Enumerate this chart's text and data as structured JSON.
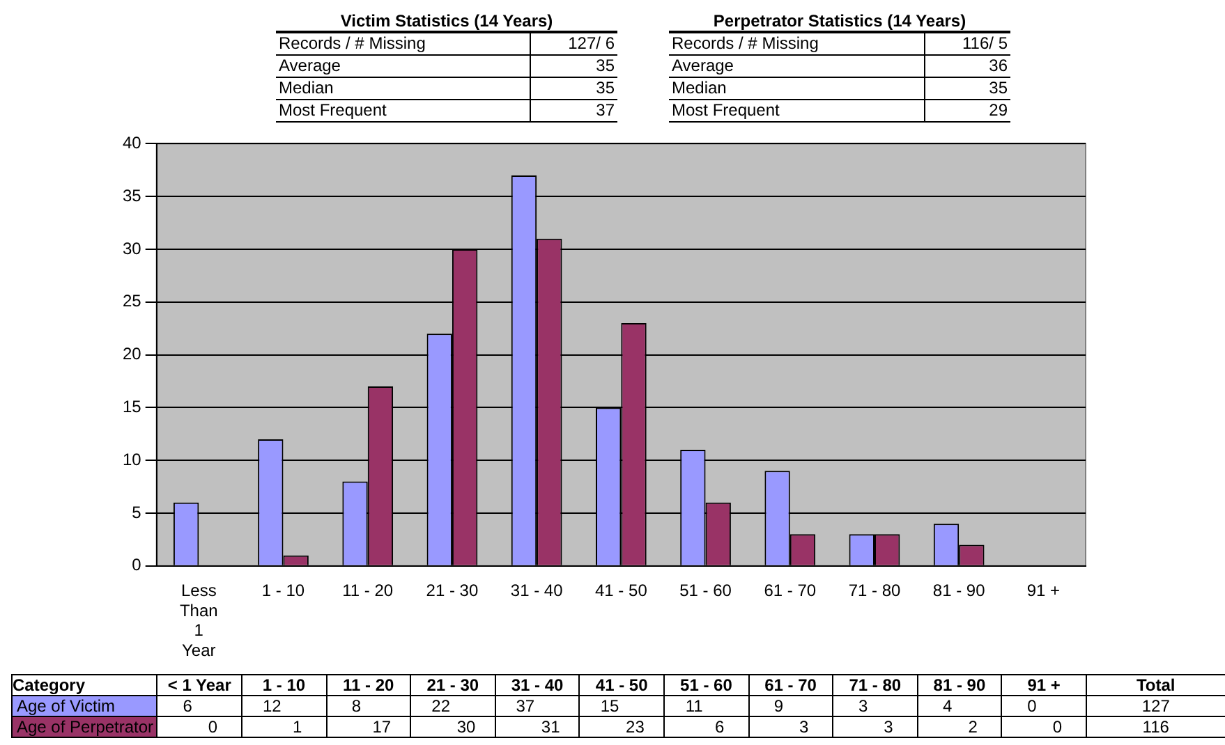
{
  "chart_data": {
    "type": "bar",
    "categories": [
      "Less Than 1 Year",
      "1 - 10",
      "11 - 20",
      "21 - 30",
      "31 - 40",
      "41 - 50",
      "51 - 60",
      "61 - 70",
      "71 - 80",
      "81 - 90",
      "91 +"
    ],
    "series": [
      {
        "name": "Age of Victim",
        "color": "#9999ff",
        "values": [
          6,
          12,
          8,
          22,
          37,
          15,
          11,
          9,
          3,
          4,
          0
        ],
        "value_labels": [
          "6",
          "12",
          "8",
          "22",
          "37",
          "15",
          "11",
          "9",
          "3",
          "4",
          "0"
        ]
      },
      {
        "name": "Age of Perpetrator",
        "color": "#993366",
        "values": [
          0,
          1,
          17,
          30,
          31,
          23,
          6,
          3,
          3,
          2,
          0
        ],
        "value_labels": [
          "0",
          "1",
          "17",
          "30",
          "31",
          "23",
          "6",
          "3",
          "3",
          "2",
          "0"
        ]
      }
    ],
    "ylim": [
      0,
      40
    ],
    "yticks": [
      0,
      5,
      10,
      15,
      20,
      25,
      30,
      35,
      40
    ],
    "grid": "y",
    "legend": "bottom",
    "annotations": [
      "Victim Statistics (14 Years)",
      "Records / # Missing",
      "127/ 6",
      "Average",
      "35",
      "Median",
      "35",
      "Most Frequent",
      "37",
      "Perpetrator Statistics (14 Years)",
      "Records / # Missing",
      "116/ 5",
      "Average",
      "36",
      "Median",
      "35",
      "Most Frequent",
      "29",
      "Category",
      "< 1 Year",
      "1 - 10",
      "11 - 20",
      "21 - 30",
      "31 - 40",
      "41 - 50",
      "51 - 60",
      "61 - 70",
      "71 - 80",
      "81 - 90",
      "91 +",
      "Total",
      "127",
      "116"
    ]
  }
}
